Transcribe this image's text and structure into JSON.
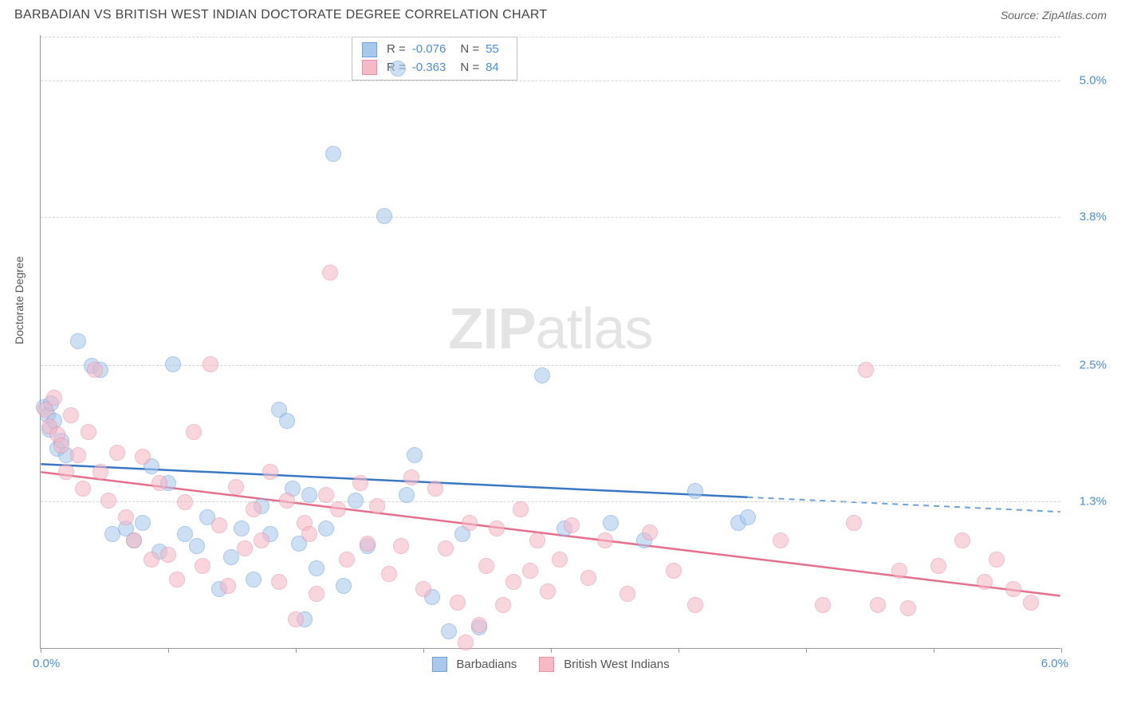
{
  "header": {
    "title": "BARBADIAN VS BRITISH WEST INDIAN DOCTORATE DEGREE CORRELATION CHART",
    "source_prefix": "Source: ",
    "source_name": "ZipAtlas.com"
  },
  "watermark": {
    "zip": "ZIP",
    "atlas": "atlas"
  },
  "chart": {
    "type": "scatter",
    "ylabel": "Doctorate Degree",
    "xlim": [
      0.0,
      6.0
    ],
    "ylim": [
      0.0,
      5.4
    ],
    "xmin_label": "0.0%",
    "xmax_label": "6.0%",
    "xticks": [
      0.0,
      0.75,
      1.5,
      2.25,
      3.0,
      3.75,
      4.5,
      5.25,
      6.0
    ],
    "yticks": [
      {
        "v": 1.3,
        "label": "1.3%"
      },
      {
        "v": 2.5,
        "label": "2.5%"
      },
      {
        "v": 3.8,
        "label": "3.8%"
      },
      {
        "v": 5.0,
        "label": "5.0%"
      }
    ],
    "grid_color": "#d6d6d6",
    "background_color": "#ffffff",
    "point_radius": 10,
    "point_opacity": 0.58,
    "series": [
      {
        "name": "Barbadians",
        "fill": "#a8c9ec",
        "stroke": "#6ca3dd",
        "R": "-0.076",
        "N": "55",
        "trend": {
          "y_at_xmin": 1.62,
          "x_solid_end": 4.16,
          "y_at_xmax": 1.2,
          "stroke": "#3b78c4",
          "dash_stroke": "#6ca3dd"
        },
        "points": [
          [
            0.02,
            2.12
          ],
          [
            0.04,
            2.05
          ],
          [
            0.05,
            1.92
          ],
          [
            0.06,
            2.15
          ],
          [
            0.08,
            2.0
          ],
          [
            0.1,
            1.75
          ],
          [
            0.12,
            1.82
          ],
          [
            0.15,
            1.7
          ],
          [
            0.22,
            2.7
          ],
          [
            0.3,
            2.48
          ],
          [
            0.35,
            2.45
          ],
          [
            0.42,
            1.0
          ],
          [
            0.5,
            1.05
          ],
          [
            0.55,
            0.95
          ],
          [
            0.6,
            1.1
          ],
          [
            0.65,
            1.6
          ],
          [
            0.7,
            0.85
          ],
          [
            0.75,
            1.45
          ],
          [
            0.78,
            2.5
          ],
          [
            0.85,
            1.0
          ],
          [
            0.92,
            0.9
          ],
          [
            0.98,
            1.15
          ],
          [
            1.05,
            0.52
          ],
          [
            1.12,
            0.8
          ],
          [
            1.18,
            1.05
          ],
          [
            1.25,
            0.6
          ],
          [
            1.3,
            1.25
          ],
          [
            1.35,
            1.0
          ],
          [
            1.4,
            2.1
          ],
          [
            1.45,
            2.0
          ],
          [
            1.48,
            1.4
          ],
          [
            1.52,
            0.92
          ],
          [
            1.55,
            0.25
          ],
          [
            1.58,
            1.35
          ],
          [
            1.62,
            0.7
          ],
          [
            1.68,
            1.05
          ],
          [
            1.72,
            4.35
          ],
          [
            1.78,
            0.55
          ],
          [
            1.85,
            1.3
          ],
          [
            1.92,
            0.9
          ],
          [
            2.02,
            3.8
          ],
          [
            2.1,
            5.1
          ],
          [
            2.15,
            1.35
          ],
          [
            2.2,
            1.7
          ],
          [
            2.3,
            0.45
          ],
          [
            2.4,
            0.15
          ],
          [
            2.48,
            1.0
          ],
          [
            2.58,
            0.18
          ],
          [
            2.95,
            2.4
          ],
          [
            3.08,
            1.05
          ],
          [
            3.35,
            1.1
          ],
          [
            3.55,
            0.95
          ],
          [
            3.85,
            1.38
          ],
          [
            4.1,
            1.1
          ],
          [
            4.16,
            1.15
          ]
        ]
      },
      {
        "name": "British West Indians",
        "fill": "#f6b9c7",
        "stroke": "#e890a6",
        "R": "-0.363",
        "N": "84",
        "trend": {
          "y_at_xmin": 1.55,
          "x_solid_end": 6.0,
          "y_at_xmax": 0.46,
          "stroke": "#e56f8d",
          "dash_stroke": "#e890a6"
        },
        "points": [
          [
            0.03,
            2.1
          ],
          [
            0.05,
            1.95
          ],
          [
            0.08,
            2.2
          ],
          [
            0.1,
            1.88
          ],
          [
            0.12,
            1.78
          ],
          [
            0.15,
            1.55
          ],
          [
            0.18,
            2.05
          ],
          [
            0.22,
            1.7
          ],
          [
            0.25,
            1.4
          ],
          [
            0.28,
            1.9
          ],
          [
            0.32,
            2.45
          ],
          [
            0.35,
            1.55
          ],
          [
            0.4,
            1.3
          ],
          [
            0.45,
            1.72
          ],
          [
            0.5,
            1.15
          ],
          [
            0.55,
            0.95
          ],
          [
            0.6,
            1.68
          ],
          [
            0.65,
            0.78
          ],
          [
            0.7,
            1.45
          ],
          [
            0.75,
            0.82
          ],
          [
            0.8,
            0.6
          ],
          [
            0.85,
            1.28
          ],
          [
            0.9,
            1.9
          ],
          [
            0.95,
            0.72
          ],
          [
            1.0,
            2.5
          ],
          [
            1.05,
            1.08
          ],
          [
            1.1,
            0.55
          ],
          [
            1.15,
            1.42
          ],
          [
            1.2,
            0.88
          ],
          [
            1.25,
            1.22
          ],
          [
            1.3,
            0.95
          ],
          [
            1.35,
            1.55
          ],
          [
            1.4,
            0.58
          ],
          [
            1.45,
            1.3
          ],
          [
            1.5,
            0.25
          ],
          [
            1.55,
            1.1
          ],
          [
            1.58,
            1.0
          ],
          [
            1.62,
            0.48
          ],
          [
            1.68,
            1.35
          ],
          [
            1.7,
            3.3
          ],
          [
            1.75,
            1.22
          ],
          [
            1.8,
            0.78
          ],
          [
            1.88,
            1.45
          ],
          [
            1.92,
            0.92
          ],
          [
            1.98,
            1.25
          ],
          [
            2.05,
            0.65
          ],
          [
            2.12,
            0.9
          ],
          [
            2.18,
            1.5
          ],
          [
            2.25,
            0.52
          ],
          [
            2.32,
            1.4
          ],
          [
            2.38,
            0.88
          ],
          [
            2.45,
            0.4
          ],
          [
            2.5,
            0.05
          ],
          [
            2.52,
            1.1
          ],
          [
            2.58,
            0.2
          ],
          [
            2.62,
            0.72
          ],
          [
            2.68,
            1.05
          ],
          [
            2.72,
            0.38
          ],
          [
            2.78,
            0.58
          ],
          [
            2.82,
            1.22
          ],
          [
            2.88,
            0.68
          ],
          [
            2.92,
            0.95
          ],
          [
            2.98,
            0.5
          ],
          [
            3.05,
            0.78
          ],
          [
            3.12,
            1.08
          ],
          [
            3.22,
            0.62
          ],
          [
            3.32,
            0.95
          ],
          [
            3.45,
            0.48
          ],
          [
            3.58,
            1.02
          ],
          [
            3.72,
            0.68
          ],
          [
            3.85,
            0.38
          ],
          [
            4.35,
            0.95
          ],
          [
            4.6,
            0.38
          ],
          [
            4.78,
            1.1
          ],
          [
            4.85,
            2.45
          ],
          [
            4.92,
            0.38
          ],
          [
            5.05,
            0.68
          ],
          [
            5.1,
            0.35
          ],
          [
            5.28,
            0.72
          ],
          [
            5.42,
            0.95
          ],
          [
            5.55,
            0.58
          ],
          [
            5.62,
            0.78
          ],
          [
            5.72,
            0.52
          ],
          [
            5.82,
            0.4
          ]
        ]
      }
    ],
    "legend": {
      "items": [
        {
          "label": "Barbadians",
          "fill": "#a8c9ec",
          "stroke": "#6ca3dd"
        },
        {
          "label": "British West Indians",
          "fill": "#f6b9c7",
          "stroke": "#e890a6"
        }
      ]
    }
  }
}
